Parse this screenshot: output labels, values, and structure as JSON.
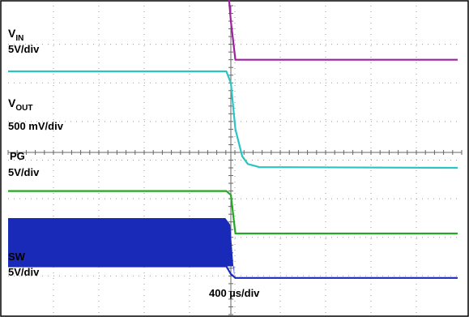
{
  "chart_data": {
    "type": "line",
    "title": "",
    "xlabel": "400 µs/div",
    "ylabel": "",
    "grid": true,
    "x_divisions": 10,
    "y_divisions": 8,
    "x_unit": "µs",
    "x_scale_per_div": 400,
    "event_time_us": 0,
    "x": [
      -2000,
      -40,
      0,
      40,
      100,
      150,
      250,
      2000
    ],
    "series": [
      {
        "id": "vin",
        "name": "VIN",
        "name_main": "V",
        "name_sub": "IN",
        "scale_label": "5V/div",
        "color": "#a020a0",
        "values": [
          9.0,
          9.0,
          7.6,
          6.6,
          6.6,
          6.6,
          6.6,
          6.6
        ]
      },
      {
        "id": "vout",
        "name": "VOUT",
        "name_main": "V",
        "name_sub": "OUT",
        "scale_label": "500 mV/div",
        "color": "#2bc4c4",
        "values": [
          6.3,
          6.3,
          6.0,
          4.8,
          4.1,
          3.9,
          3.82,
          3.8
        ]
      },
      {
        "id": "pg",
        "name": "PG",
        "scale_label": "5V/div",
        "color": "#22aa22",
        "values": [
          3.2,
          3.2,
          3.1,
          2.1,
          2.1,
          2.1,
          2.1,
          2.1
        ]
      },
      {
        "id": "sw",
        "name": "SW",
        "scale_label": "5V/div",
        "color": "#1a2ab8",
        "switching_band": [
          1.25,
          2.5
        ],
        "values": [
          1.25,
          1.25,
          1.05,
          0.95,
          0.95,
          0.95,
          0.95,
          0.95
        ]
      }
    ]
  }
}
